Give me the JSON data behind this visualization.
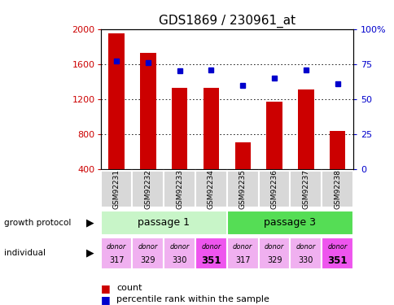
{
  "title": "GDS1869 / 230961_at",
  "samples": [
    "GSM92231",
    "GSM92232",
    "GSM92233",
    "GSM92234",
    "GSM92235",
    "GSM92236",
    "GSM92237",
    "GSM92238"
  ],
  "counts": [
    1950,
    1730,
    1330,
    1330,
    710,
    1175,
    1310,
    840
  ],
  "percentile_ranks": [
    77,
    76,
    70,
    71,
    60,
    65,
    71,
    61
  ],
  "ylim_left": [
    400,
    2000
  ],
  "ylim_right": [
    0,
    100
  ],
  "yticks_left": [
    400,
    800,
    1200,
    1600,
    2000
  ],
  "yticks_right": [
    0,
    25,
    50,
    75,
    100
  ],
  "passage_groups": [
    {
      "label": "passage 1",
      "start": 0,
      "end": 3,
      "color": "#c8f5c8"
    },
    {
      "label": "passage 3",
      "start": 4,
      "end": 7,
      "color": "#55dd55"
    }
  ],
  "individuals": [
    {
      "label": "donor\n317",
      "color": "#f0b0f0"
    },
    {
      "label": "donor\n329",
      "color": "#f0b0f0"
    },
    {
      "label": "donor\n330",
      "color": "#f0b0f0"
    },
    {
      "label": "donor\n351",
      "color": "#ee55ee"
    },
    {
      "label": "donor\n317",
      "color": "#f0b0f0"
    },
    {
      "label": "donor\n329",
      "color": "#f0b0f0"
    },
    {
      "label": "donor\n330",
      "color": "#f0b0f0"
    },
    {
      "label": "donor\n351",
      "color": "#ee55ee"
    }
  ],
  "bar_color": "#cc0000",
  "dot_color": "#0000cc",
  "bar_width": 0.5,
  "left_label_color": "#cc0000",
  "right_label_color": "#0000cc",
  "background_color": "#ffffff",
  "sample_box_color": "#d8d8d8",
  "legend_count_color": "#cc0000",
  "legend_pct_color": "#0000cc"
}
